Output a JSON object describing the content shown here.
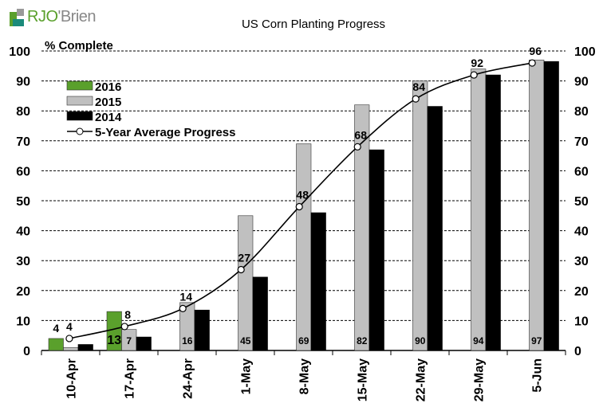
{
  "logo": {
    "part1": "RJO",
    "part2": "'Brien"
  },
  "chart_data": {
    "type": "bar",
    "title": "US Corn Planting Progress",
    "ylabel": "% Complete",
    "ylim": [
      0,
      100
    ],
    "yticks": [
      0,
      10,
      20,
      30,
      40,
      50,
      60,
      70,
      80,
      90,
      100
    ],
    "grid": true,
    "legend": "top-left",
    "categories": [
      "10-Apr",
      "17-Apr",
      "24-Apr",
      "1-May",
      "8-May",
      "15-May",
      "22-May",
      "29-May",
      "5-Jun"
    ],
    "series": [
      {
        "name": "2016",
        "type": "bar",
        "color": "#5aa02c",
        "values": [
          4,
          13,
          null,
          null,
          null,
          null,
          null,
          null,
          null
        ],
        "labels": [
          "4",
          "13",
          "",
          "",
          "",
          "",
          "",
          "",
          ""
        ]
      },
      {
        "name": "2015",
        "type": "bar",
        "color": "#c0c0c0",
        "values": [
          1,
          7,
          16,
          45,
          69,
          82,
          90,
          94,
          97
        ],
        "labels": [
          "",
          "7",
          "16",
          "45",
          "69",
          "82",
          "90",
          "94",
          "97"
        ]
      },
      {
        "name": "2014",
        "type": "bar",
        "color": "#000000",
        "values": [
          2,
          4.5,
          13.5,
          24.5,
          46,
          67,
          81.5,
          92,
          96.5
        ]
      },
      {
        "name": "5-Year Average Progress",
        "type": "line",
        "color": "#000000",
        "values": [
          4,
          8,
          14,
          27,
          48,
          68,
          84,
          92,
          96
        ],
        "labels": [
          "4",
          "8",
          "14",
          "27",
          "48",
          "68",
          "84",
          "92",
          "96"
        ]
      }
    ]
  }
}
